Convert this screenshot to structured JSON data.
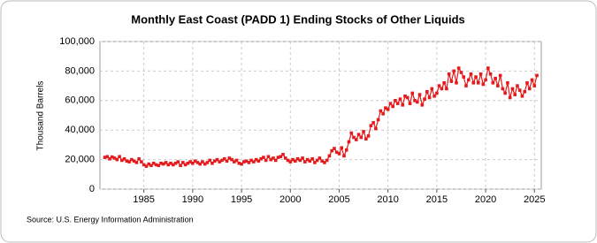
{
  "chart_data": {
    "type": "line",
    "title": "Monthly East Coast (PADD 1) Ending Stocks of Other Liquids",
    "ylabel": "Thousand Barrels",
    "source": "Source: U.S. Energy Information Administration",
    "color": "#e41a1c",
    "grid": true,
    "xlim": [
      1980.5,
      2025.7
    ],
    "xticks": [
      1985,
      1990,
      1995,
      2000,
      2005,
      2010,
      2015,
      2020,
      2025
    ],
    "ylim": [
      0,
      100000
    ],
    "yticks": [
      0,
      {
        "value": 20000,
        "label": "20,000"
      },
      {
        "value": 40000,
        "label": "40,000"
      },
      {
        "value": 60000,
        "label": "60,000"
      },
      {
        "value": 80000,
        "label": "80,000"
      },
      {
        "value": 100000,
        "label": "100,000"
      }
    ],
    "x": [
      1981,
      1981.25,
      1981.5,
      1981.75,
      1982,
      1982.25,
      1982.5,
      1982.75,
      1983,
      1983.25,
      1983.5,
      1983.75,
      1984,
      1984.25,
      1984.5,
      1984.75,
      1985,
      1985.25,
      1985.5,
      1985.75,
      1986,
      1986.25,
      1986.5,
      1986.75,
      1987,
      1987.25,
      1987.5,
      1987.75,
      1988,
      1988.25,
      1988.5,
      1988.75,
      1989,
      1989.25,
      1989.5,
      1989.75,
      1990,
      1990.25,
      1990.5,
      1990.75,
      1991,
      1991.25,
      1991.5,
      1991.75,
      1992,
      1992.25,
      1992.5,
      1992.75,
      1993,
      1993.25,
      1993.5,
      1993.75,
      1994,
      1994.25,
      1994.5,
      1994.75,
      1995,
      1995.25,
      1995.5,
      1995.75,
      1996,
      1996.25,
      1996.5,
      1996.75,
      1997,
      1997.25,
      1997.5,
      1997.75,
      1998,
      1998.25,
      1998.5,
      1998.75,
      1999,
      1999.25,
      1999.5,
      1999.75,
      2000,
      2000.25,
      2000.5,
      2000.75,
      2001,
      2001.25,
      2001.5,
      2001.75,
      2002,
      2002.25,
      2002.5,
      2002.75,
      2003,
      2003.25,
      2003.5,
      2003.75,
      2004,
      2004.25,
      2004.5,
      2004.75,
      2005,
      2005.25,
      2005.5,
      2005.75,
      2006,
      2006.25,
      2006.5,
      2006.75,
      2007,
      2007.25,
      2007.5,
      2007.75,
      2008,
      2008.25,
      2008.5,
      2008.75,
      2009,
      2009.25,
      2009.5,
      2009.75,
      2010,
      2010.25,
      2010.5,
      2010.75,
      2011,
      2011.25,
      2011.5,
      2011.75,
      2012,
      2012.25,
      2012.5,
      2012.75,
      2013,
      2013.25,
      2013.5,
      2013.75,
      2014,
      2014.25,
      2014.5,
      2014.75,
      2015,
      2015.25,
      2015.5,
      2015.75,
      2016,
      2016.25,
      2016.5,
      2016.75,
      2017,
      2017.25,
      2017.5,
      2017.75,
      2018,
      2018.25,
      2018.5,
      2018.75,
      2019,
      2019.25,
      2019.5,
      2019.75,
      2020,
      2020.25,
      2020.5,
      2020.75,
      2021,
      2021.25,
      2021.5,
      2021.75,
      2022,
      2022.25,
      2022.5,
      2022.75,
      2023,
      2023.25,
      2023.5,
      2023.75,
      2024,
      2024.25,
      2024.5,
      2024.75,
      2025,
      2025.25
    ],
    "values": [
      21500,
      22000,
      20500,
      21800,
      21000,
      20000,
      22000,
      19500,
      20500,
      19000,
      18500,
      20000,
      19000,
      18000,
      20500,
      18500,
      16500,
      15500,
      17000,
      16000,
      17500,
      16500,
      16000,
      17500,
      17000,
      18000,
      16500,
      17500,
      16500,
      17500,
      18500,
      16000,
      18000,
      16500,
      17500,
      18500,
      17500,
      19000,
      18000,
      17000,
      18500,
      17000,
      18000,
      19500,
      17500,
      19000,
      20000,
      18500,
      19500,
      20500,
      19000,
      21000,
      20000,
      18500,
      19500,
      17500,
      17000,
      18500,
      19000,
      18000,
      19500,
      18500,
      20000,
      19000,
      20500,
      21500,
      19500,
      22000,
      20000,
      21000,
      19500,
      21500,
      22000,
      23500,
      21000,
      19500,
      18500,
      20000,
      19000,
      20500,
      19500,
      21000,
      18500,
      20000,
      19000,
      20500,
      18000,
      19500,
      21000,
      19000,
      18000,
      19500,
      22500,
      26000,
      27500,
      25000,
      24000,
      28000,
      22500,
      26500,
      32000,
      38000,
      35000,
      33500,
      37000,
      35000,
      39000,
      34000,
      36000,
      43000,
      45000,
      41000,
      47000,
      53000,
      51000,
      55000,
      54000,
      58000,
      56000,
      60000,
      58000,
      61000,
      57000,
      63000,
      62000,
      58000,
      65000,
      60000,
      59000,
      64000,
      57000,
      61000,
      66000,
      62000,
      68000,
      63000,
      65000,
      70000,
      68000,
      72000,
      68000,
      78000,
      73000,
      80000,
      72000,
      82000,
      79000,
      76000,
      70000,
      74000,
      78000,
      72000,
      76000,
      72000,
      78000,
      71000,
      74000,
      82000,
      78000,
      72000,
      75000,
      70000,
      77000,
      68000,
      65000,
      72000,
      62000,
      68000,
      64000,
      70000,
      67000,
      63000,
      66000,
      72000,
      68000,
      74000,
      70000,
      77000
    ]
  }
}
